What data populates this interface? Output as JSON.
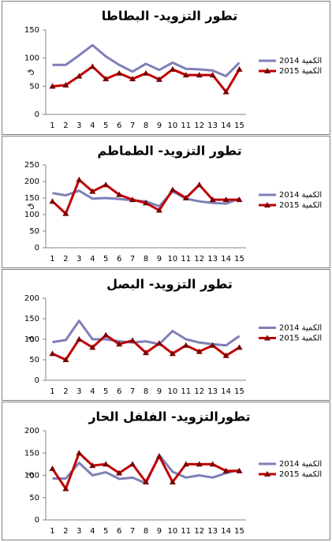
{
  "chart_data": [
    {
      "type": "line",
      "title": "تطور التزويد- البطاطا",
      "y_label": "ق",
      "categories": [
        "1",
        "2",
        "3",
        "4",
        "5",
        "6",
        "7",
        "8",
        "9",
        "10",
        "11",
        "12",
        "13",
        "14",
        "15"
      ],
      "ylim": [
        0,
        150
      ],
      "yticks": [
        0,
        50,
        100,
        150
      ],
      "grid": false,
      "legend": "right",
      "series": [
        {
          "name": "الكمية 2014",
          "color": "#7f7fb8",
          "marker": "none",
          "values": [
            88,
            88,
            105,
            123,
            103,
            88,
            76,
            90,
            79,
            92,
            81,
            80,
            78,
            68,
            92
          ]
        },
        {
          "name": "الكمية 2015",
          "color": "#c00000",
          "marker": "triangle",
          "values": [
            50,
            52,
            68,
            85,
            63,
            73,
            63,
            73,
            62,
            80,
            70,
            70,
            70,
            40,
            80
          ]
        }
      ]
    },
    {
      "type": "line",
      "title": "تطور التزويد- الطماطم",
      "y_label": "ق",
      "categories": [
        "1",
        "2",
        "3",
        "4",
        "5",
        "6",
        "7",
        "8",
        "9",
        "10",
        "11",
        "12",
        "13",
        "14",
        "15"
      ],
      "ylim": [
        0,
        250
      ],
      "yticks": [
        0,
        50,
        100,
        150,
        200,
        250
      ],
      "grid": false,
      "legend": "right",
      "series": [
        {
          "name": "الكمية 2014",
          "color": "#7f7fb8",
          "marker": "none",
          "values": [
            165,
            158,
            172,
            148,
            150,
            147,
            143,
            140,
            125,
            170,
            148,
            140,
            135,
            133,
            148
          ]
        },
        {
          "name": "الكمية 2015",
          "color": "#c00000",
          "marker": "triangle",
          "values": [
            140,
            103,
            205,
            170,
            190,
            160,
            145,
            135,
            113,
            175,
            150,
            190,
            145,
            145,
            145
          ]
        }
      ]
    },
    {
      "type": "line",
      "title": "تطور التزويد- البصل",
      "y_label": "ق",
      "categories": [
        "1",
        "2",
        "3",
        "4",
        "5",
        "6",
        "7",
        "8",
        "9",
        "10",
        "11",
        "12",
        "13",
        "14",
        "15"
      ],
      "ylim": [
        0,
        200
      ],
      "yticks": [
        0,
        50,
        100,
        150,
        200
      ],
      "grid": false,
      "legend": "right",
      "series": [
        {
          "name": "الكمية 2014",
          "color": "#7f7fb8",
          "marker": "none",
          "values": [
            93,
            98,
            145,
            100,
            100,
            95,
            92,
            95,
            88,
            120,
            100,
            92,
            88,
            85,
            108
          ]
        },
        {
          "name": "الكمية 2015",
          "color": "#c00000",
          "marker": "triangle",
          "values": [
            65,
            50,
            100,
            80,
            110,
            88,
            97,
            67,
            90,
            65,
            85,
            70,
            85,
            60,
            80
          ]
        }
      ]
    },
    {
      "type": "line",
      "title": "تطورالتزويد- الفلفل الحار",
      "y_label": "ق",
      "categories": [
        "1",
        "2",
        "3",
        "4",
        "5",
        "6",
        "7",
        "8",
        "9",
        "10",
        "11",
        "12",
        "13",
        "14",
        "15"
      ],
      "ylim": [
        0,
        200
      ],
      "yticks": [
        0,
        50,
        100,
        150,
        200
      ],
      "grid": false,
      "legend": "right",
      "series": [
        {
          "name": "الكمية 2014",
          "color": "#7f7fb8",
          "marker": "none",
          "values": [
            93,
            93,
            128,
            100,
            107,
            92,
            95,
            82,
            145,
            108,
            95,
            100,
            95,
            105,
            112
          ]
        },
        {
          "name": "الكمية 2015",
          "color": "#c00000",
          "marker": "triangle",
          "values": [
            115,
            70,
            150,
            122,
            125,
            105,
            125,
            85,
            143,
            85,
            125,
            125,
            125,
            110,
            110
          ]
        }
      ]
    }
  ]
}
